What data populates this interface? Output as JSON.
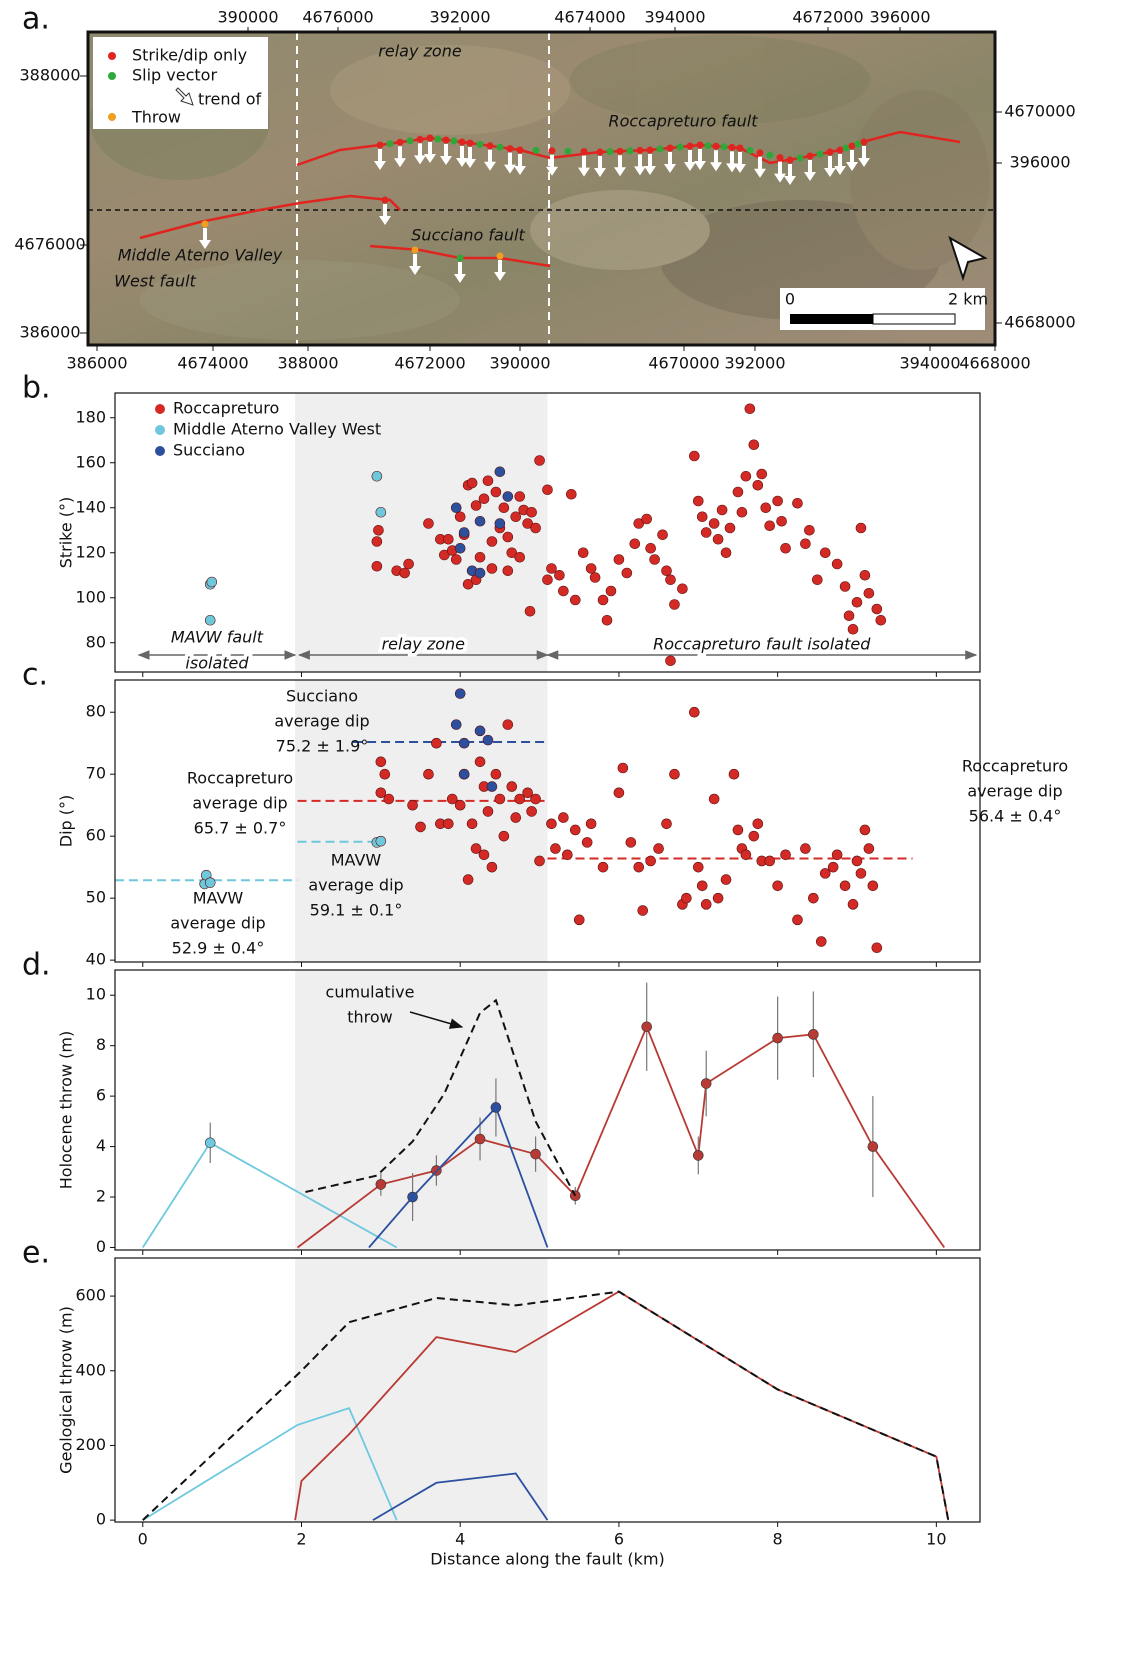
{
  "map": {
    "panel": "a.",
    "legend": [
      "Strike/dip only",
      "Slip vector",
      "trend of",
      "Throw"
    ],
    "labels": [
      [
        "relay zone"
      ],
      [
        "Roccapreturo fault"
      ],
      [
        "Middle Aterno Valley",
        "West fault"
      ],
      [
        "Succiano fault"
      ]
    ],
    "coords": {
      "top": [
        "390000",
        "4676000",
        "392000",
        "4674000",
        "394000",
        "4672000",
        "396000"
      ],
      "left": [
        "388000",
        "4676000",
        "386000"
      ],
      "right": [
        "4670000",
        "396000",
        "4668000"
      ],
      "bottom": [
        "386000",
        "4674000",
        "388000",
        "4672000",
        "390000",
        "4670000",
        "392000",
        "394000",
        "4668000"
      ]
    },
    "scale": [
      "0",
      "2 km"
    ]
  },
  "chart_data": [
    {
      "type": "scatter",
      "panel": "b.",
      "ylabel": "Strike (°)",
      "xlim": [
        -0.35,
        10.55
      ],
      "xticks": [
        0,
        2,
        4,
        6,
        8,
        10
      ],
      "ylim": [
        67,
        191
      ],
      "yticks": [
        80,
        100,
        120,
        140,
        160,
        180
      ],
      "relay_zone": [
        1.92,
        5.1
      ],
      "series": [
        {
          "name": "Roccapreturo",
          "color": "#d42a26",
          "x": [
            2.95,
            2.95,
            2.97,
            3.2,
            3.3,
            3.35,
            3.6,
            3.75,
            3.8,
            3.85,
            3.9,
            3.95,
            4.0,
            4.05,
            4.1,
            4.1,
            4.15,
            4.2,
            4.2,
            4.25,
            4.3,
            4.35,
            4.4,
            4.4,
            4.45,
            4.5,
            4.55,
            4.6,
            4.6,
            4.65,
            4.7,
            4.75,
            4.75,
            4.8,
            4.85,
            4.88,
            4.9,
            4.95,
            5.0,
            5.1,
            5.1,
            5.15,
            5.25,
            5.3,
            5.4,
            5.45,
            5.55,
            5.65,
            5.7,
            5.8,
            5.85,
            5.9,
            6.0,
            6.1,
            6.2,
            6.25,
            6.35,
            6.4,
            6.45,
            6.55,
            6.6,
            6.65,
            6.65,
            6.7,
            6.8,
            6.95,
            7.0,
            7.05,
            7.1,
            7.2,
            7.25,
            7.3,
            7.35,
            7.4,
            7.5,
            7.55,
            7.6,
            7.65,
            7.7,
            7.75,
            7.8,
            7.85,
            7.9,
            8.0,
            8.05,
            8.1,
            8.25,
            8.35,
            8.4,
            8.5,
            8.6,
            8.75,
            8.85,
            8.9,
            8.95,
            9.0,
            9.05,
            9.1,
            9.15,
            9.25,
            9.3
          ],
          "values": [
            114,
            125,
            130,
            112,
            111,
            115,
            133,
            126,
            119,
            126,
            121,
            117,
            136,
            128,
            150,
            106,
            151,
            141,
            108,
            118,
            144,
            152,
            125,
            113,
            147,
            131,
            140,
            127,
            112,
            120,
            136,
            145,
            118,
            139,
            133,
            94,
            138,
            131,
            161,
            148,
            108,
            113,
            110,
            103,
            146,
            99,
            120,
            113,
            109,
            99,
            90,
            103,
            117,
            111,
            124,
            133,
            135,
            122,
            117,
            128,
            112,
            108,
            72,
            97,
            104,
            163,
            143,
            136,
            129,
            133,
            126,
            139,
            120,
            131,
            147,
            138,
            154,
            184,
            168,
            150,
            155,
            140,
            132,
            143,
            134,
            122,
            142,
            124,
            130,
            108,
            120,
            115,
            105,
            92,
            86,
            98,
            131,
            110,
            102,
            95,
            90
          ]
        },
        {
          "name": "Middle Aterno Valley West",
          "color": "#6ec8dc",
          "x": [
            0.85,
            0.87,
            0.85,
            2.95,
            3.0
          ],
          "values": [
            106,
            107,
            90,
            154,
            138
          ]
        },
        {
          "name": "Succiano",
          "color": "#2c4f9e",
          "x": [
            3.95,
            4.0,
            4.05,
            4.15,
            4.25,
            4.25,
            4.5,
            4.5,
            4.6
          ],
          "values": [
            140,
            122,
            129,
            112,
            111,
            134,
            156,
            133,
            145
          ]
        }
      ],
      "spans": [
        {
          "label": [
            "MAVW fault",
            "isolated"
          ],
          "x": [
            -0.05,
            1.92
          ]
        },
        {
          "label": [
            "relay zone"
          ],
          "x": [
            1.97,
            5.1
          ]
        },
        {
          "label": [
            "Roccapreturo fault isolated"
          ],
          "x": [
            5.1,
            10.5
          ]
        }
      ]
    },
    {
      "type": "scatter",
      "panel": "c.",
      "ylabel": "Dip (°)",
      "xlim": [
        -0.35,
        10.55
      ],
      "xticks": [
        0,
        2,
        4,
        6,
        8,
        10
      ],
      "ylim": [
        39.7,
        85.2
      ],
      "yticks": [
        40,
        50,
        60,
        70,
        80
      ],
      "relay_zone": [
        1.92,
        5.1
      ],
      "series": [
        {
          "color": "#d42a26",
          "x": [
            3.0,
            3.0,
            3.05,
            3.1,
            3.4,
            3.5,
            3.6,
            3.7,
            3.75,
            3.85,
            3.9,
            4.0,
            4.05,
            4.1,
            4.15,
            4.2,
            4.25,
            4.3,
            4.3,
            4.35,
            4.4,
            4.45,
            4.5,
            4.55,
            4.6,
            4.65,
            4.7,
            4.75,
            4.85,
            4.9,
            4.95,
            5.0,
            5.15,
            5.2,
            5.3,
            5.35,
            5.45,
            5.5,
            5.6,
            5.65,
            5.8,
            6.0,
            6.05,
            6.15,
            6.25,
            6.3,
            6.4,
            6.5,
            6.6,
            6.7,
            6.8,
            6.85,
            6.95,
            7.0,
            7.05,
            7.1,
            7.2,
            7.25,
            7.35,
            7.45,
            7.5,
            7.55,
            7.6,
            7.7,
            7.75,
            7.8,
            7.9,
            8.0,
            8.1,
            8.25,
            8.35,
            8.45,
            8.55,
            8.6,
            8.7,
            8.75,
            8.85,
            8.95,
            9.0,
            9.05,
            9.1,
            9.15,
            9.2,
            9.25
          ],
          "values": [
            72,
            67,
            70,
            66,
            65,
            61.5,
            70,
            75,
            62,
            62,
            66,
            65,
            70,
            53,
            62,
            58,
            72,
            68,
            57,
            64,
            55,
            70,
            66,
            60,
            78,
            68,
            63,
            66,
            67,
            64,
            66,
            56,
            62,
            58,
            63,
            57,
            61,
            46.5,
            59,
            62,
            55,
            67,
            71,
            59,
            55,
            48,
            56,
            58,
            62,
            70,
            49,
            50,
            80,
            55,
            52,
            49,
            66,
            50,
            53,
            70,
            61,
            58,
            57,
            60,
            62,
            56,
            56,
            52,
            57,
            46.5,
            58,
            50,
            43,
            54,
            55,
            57,
            52,
            49,
            56,
            54,
            61,
            58,
            52,
            42
          ]
        },
        {
          "color": "#6ec8dc",
          "x": [
            0.78,
            0.8,
            0.85,
            2.95,
            3.0
          ],
          "values": [
            52.3,
            53.7,
            52.5,
            59,
            59.2
          ]
        },
        {
          "color": "#2c4f9e",
          "x": [
            3.95,
            4.0,
            4.05,
            4.05,
            4.25,
            4.35,
            4.4
          ],
          "values": [
            78,
            83,
            75,
            70,
            77,
            75.5,
            68
          ]
        }
      ],
      "hlines": [
        {
          "value": 75.2,
          "x": [
            2.65,
            5.1
          ],
          "color": "#2c4f9e"
        },
        {
          "value": 65.7,
          "x": [
            1.95,
            5.1
          ],
          "color": "#d42a26"
        },
        {
          "value": 59.1,
          "x": [
            1.95,
            2.95
          ],
          "color": "#6ec8dc"
        },
        {
          "value": 52.9,
          "x": [
            -0.35,
            1.95
          ],
          "color": "#6ec8dc"
        },
        {
          "value": 56.4,
          "x": [
            5.1,
            9.7
          ],
          "color": "#d42a26"
        }
      ],
      "annotations": [
        [
          "Succiano",
          "average dip",
          "75.2 ± 1.9°"
        ],
        [
          "Roccapreturo",
          "average dip",
          "65.7 ± 0.7°"
        ],
        [
          "MAVW",
          "average dip",
          "59.1 ± 0.1°"
        ],
        [
          "MAVW",
          "average dip",
          "52.9 ± 0.4°"
        ],
        [
          "Roccapreturo",
          "average dip",
          "56.4 ± 0.4°"
        ]
      ]
    },
    {
      "type": "line",
      "panel": "d.",
      "ylabel": "Holocene throw (m)",
      "xlim": [
        -0.35,
        10.55
      ],
      "xticks": [
        0,
        2,
        4,
        6,
        8,
        10
      ],
      "ylim": [
        -0.1,
        11
      ],
      "yticks": [
        0,
        2,
        4,
        6,
        8,
        10
      ],
      "relay_zone": [
        1.92,
        5.1
      ],
      "series": [
        {
          "color": "#6ec8e0",
          "x": [
            0,
            0.85,
            3.2
          ],
          "values": [
            0,
            4.15,
            0
          ],
          "errors": [
            null,
            0.8,
            null
          ]
        },
        {
          "color": "#b83a35",
          "x": [
            1.95,
            3.0,
            3.7,
            4.25,
            4.95,
            5.45,
            6.35,
            7.0,
            7.1,
            8.0,
            8.45,
            9.2,
            10.1
          ],
          "values": [
            0,
            2.5,
            3.05,
            4.3,
            3.7,
            2.05,
            8.75,
            3.65,
            6.5,
            8.3,
            8.45,
            4.0,
            0
          ],
          "errors": [
            null,
            0.45,
            0.6,
            0.85,
            0.7,
            0.35,
            1.75,
            0.75,
            1.3,
            1.65,
            1.7,
            2.0,
            null
          ]
        },
        {
          "color": "#2c4fa0",
          "x": [
            2.85,
            3.4,
            4.45,
            5.1
          ],
          "values": [
            0,
            2.0,
            5.55,
            0
          ],
          "errors": [
            null,
            0.95,
            1.15,
            null
          ]
        },
        {
          "color": "#111111",
          "dash": true,
          "x": [
            2.05,
            2.95,
            3.4,
            3.8,
            4.25,
            4.45,
            4.95,
            5.45
          ],
          "values": [
            2.2,
            2.85,
            4.2,
            6.1,
            9.3,
            9.8,
            5.0,
            2.05
          ]
        }
      ],
      "annotations": [
        [
          "cumulative",
          "throw"
        ]
      ]
    },
    {
      "type": "line",
      "panel": "e.",
      "ylabel": "Geological throw (m)",
      "xlabel": "Distance along the fault (km)",
      "xlim": [
        -0.35,
        10.55
      ],
      "xticks": [
        0,
        2,
        4,
        6,
        8,
        10
      ],
      "ylim": [
        -5,
        702
      ],
      "yticks": [
        0,
        200,
        400,
        600
      ],
      "relay_zone": [
        1.92,
        5.1
      ],
      "series": [
        {
          "color": "#6ec8e0",
          "x": [
            0,
            1.95,
            2.6,
            3.2
          ],
          "values": [
            0,
            255,
            300,
            0
          ]
        },
        {
          "color": "#b83a35",
          "x": [
            1.92,
            2.0,
            2.6,
            3.7,
            4.7,
            6.0,
            8.0,
            10.0,
            10.15
          ],
          "values": [
            0,
            105,
            230,
            490,
            450,
            612,
            350,
            170,
            0
          ]
        },
        {
          "color": "#2c4fa0",
          "x": [
            2.9,
            3.7,
            4.7,
            5.1
          ],
          "values": [
            0,
            100,
            125,
            0
          ]
        },
        {
          "color": "#111111",
          "dash": true,
          "x": [
            0,
            2.0,
            2.6,
            3.7,
            4.7,
            6.0,
            8.0,
            10.0,
            10.15
          ],
          "values": [
            0,
            400,
            530,
            595,
            575,
            612,
            350,
            170,
            0
          ]
        }
      ]
    }
  ]
}
